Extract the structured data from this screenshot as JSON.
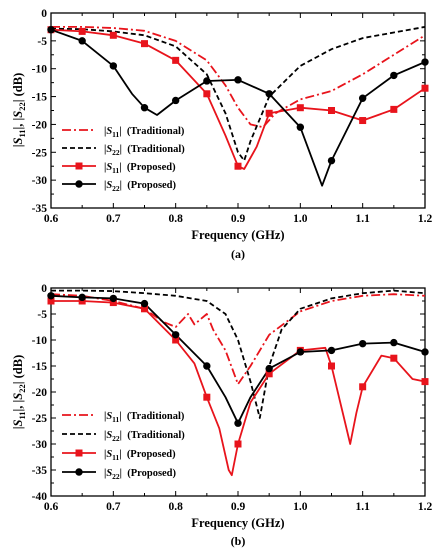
{
  "chart_data": [
    {
      "type": "line",
      "panel_label": "(a)",
      "xlabel": "Frequency (GHz)",
      "ylabel": "|S11|, |S22| (dB)",
      "xlim": [
        0.6,
        1.2
      ],
      "ylim": [
        -35,
        0
      ],
      "xticks": [
        0.6,
        0.7,
        0.8,
        0.9,
        1.0,
        1.1,
        1.2
      ],
      "yticks": [
        0,
        -5,
        -10,
        -15,
        -20,
        -25,
        -30,
        -35
      ],
      "xtick_labels": [
        "0.6",
        "0.7",
        "0.8",
        "0.9",
        "1.0",
        "1.1",
        "1.2"
      ],
      "ytick_labels": [
        "0",
        "-5",
        "-10",
        "-15",
        "-20",
        "-25",
        "-30",
        "-35"
      ],
      "legend_position": "lower-left",
      "series": [
        {
          "name": "|S11| (Traditional)",
          "legend_base": "S",
          "legend_sub": "11",
          "legend_suffix": "(Traditional)",
          "color": "#e8141c",
          "dash": "dashdot",
          "marker": "none",
          "x": [
            0.6,
            0.65,
            0.7,
            0.75,
            0.8,
            0.85,
            0.88,
            0.9,
            0.92,
            0.94,
            0.96,
            1.0,
            1.05,
            1.1,
            1.15,
            1.2
          ],
          "y": [
            -2.5,
            -2.5,
            -2.7,
            -3.2,
            -5.0,
            -8.5,
            -13.0,
            -17.0,
            -20.0,
            -20.5,
            -18.0,
            -15.5,
            -14.0,
            -11.0,
            -7.5,
            -4.0
          ],
          "marker_x": [],
          "marker_y": []
        },
        {
          "name": "|S22| (Traditional)",
          "legend_base": "S",
          "legend_sub": "22",
          "legend_suffix": "(Traditional)",
          "color": "#000000",
          "dash": "dash",
          "marker": "none",
          "x": [
            0.6,
            0.65,
            0.7,
            0.75,
            0.8,
            0.85,
            0.88,
            0.9,
            0.91,
            0.92,
            0.95,
            1.0,
            1.05,
            1.1,
            1.15,
            1.2
          ],
          "y": [
            -2.8,
            -2.9,
            -3.3,
            -4.0,
            -6.0,
            -11.0,
            -18.0,
            -25.0,
            -26.5,
            -23.0,
            -15.0,
            -9.5,
            -6.5,
            -4.5,
            -3.5,
            -2.5
          ],
          "marker_x": [],
          "marker_y": []
        },
        {
          "name": "|S11| (Proposed)",
          "legend_base": "S",
          "legend_sub": "11",
          "legend_suffix": "(Proposed)",
          "color": "#e8141c",
          "dash": "solid",
          "marker": "square",
          "x": [
            0.6,
            0.65,
            0.7,
            0.75,
            0.8,
            0.85,
            0.88,
            0.9,
            0.91,
            0.93,
            0.95,
            1.0,
            1.05,
            1.1,
            1.15,
            1.2
          ],
          "y": [
            -3.0,
            -3.3,
            -4.0,
            -5.5,
            -8.5,
            -14.5,
            -22.0,
            -27.5,
            -28.0,
            -24.0,
            -18.0,
            -17.0,
            -17.5,
            -19.3,
            -17.3,
            -13.5
          ],
          "marker_x": [
            0.6,
            0.65,
            0.7,
            0.75,
            0.8,
            0.85,
            0.9,
            0.95,
            1.0,
            1.05,
            1.1,
            1.15,
            1.2
          ],
          "marker_y": [
            -3.0,
            -3.3,
            -4.0,
            -5.5,
            -8.5,
            -14.5,
            -27.5,
            -18.0,
            -17.0,
            -17.5,
            -19.3,
            -17.3,
            -13.5
          ]
        },
        {
          "name": "|S22| (Proposed)",
          "legend_base": "S",
          "legend_sub": "22",
          "legend_suffix": "(Proposed)",
          "color": "#000000",
          "dash": "solid",
          "marker": "circle",
          "x": [
            0.6,
            0.65,
            0.7,
            0.73,
            0.75,
            0.77,
            0.8,
            0.85,
            0.9,
            0.95,
            1.0,
            1.03,
            1.035,
            1.05,
            1.1,
            1.15,
            1.2
          ],
          "y": [
            -3.0,
            -5.0,
            -9.5,
            -14.5,
            -17.0,
            -18.3,
            -15.7,
            -12.2,
            -12.0,
            -14.5,
            -20.5,
            -29.5,
            -31.0,
            -26.5,
            -15.3,
            -11.2,
            -8.8
          ],
          "marker_x": [
            0.6,
            0.65,
            0.7,
            0.75,
            0.8,
            0.85,
            0.9,
            0.95,
            1.0,
            1.05,
            1.1,
            1.15,
            1.2
          ],
          "marker_y": [
            -3.0,
            -5.0,
            -9.5,
            -17.0,
            -15.7,
            -12.2,
            -12.0,
            -14.5,
            -20.5,
            -26.5,
            -15.3,
            -11.2,
            -8.8
          ]
        }
      ]
    },
    {
      "type": "line",
      "panel_label": "(b)",
      "xlabel": "Frequency (GHz)",
      "ylabel": "|S11|, |S22| (dB)",
      "xlim": [
        0.6,
        1.2
      ],
      "ylim": [
        -40,
        0
      ],
      "xticks": [
        0.6,
        0.7,
        0.8,
        0.9,
        1.0,
        1.1,
        1.2
      ],
      "yticks": [
        0,
        -5,
        -10,
        -15,
        -20,
        -25,
        -30,
        -35,
        -40
      ],
      "xtick_labels": [
        "0.6",
        "0.7",
        "0.8",
        "0.9",
        "1.0",
        "1.1",
        "1.2"
      ],
      "ytick_labels": [
        "0",
        "-5",
        "-10",
        "-15",
        "-20",
        "-25",
        "-30",
        "-35",
        "-40"
      ],
      "legend_position": "lower-left",
      "series": [
        {
          "name": "|S11| (Traditional)",
          "legend_base": "S",
          "legend_sub": "11",
          "legend_suffix": "(Traditional)",
          "color": "#e8141c",
          "dash": "dashdot",
          "marker": "none",
          "x": [
            0.6,
            0.65,
            0.7,
            0.75,
            0.78,
            0.8,
            0.82,
            0.83,
            0.85,
            0.86,
            0.88,
            0.9,
            0.92,
            0.95,
            1.0,
            1.05,
            1.1,
            1.15,
            1.2
          ],
          "y": [
            -1.2,
            -1.5,
            -2.5,
            -4.0,
            -6.5,
            -7.5,
            -5.0,
            -7.0,
            -5.0,
            -8.0,
            -12.0,
            -18.5,
            -15.0,
            -9.0,
            -4.5,
            -2.5,
            -1.5,
            -1.2,
            -1.5
          ],
          "marker_x": [],
          "marker_y": []
        },
        {
          "name": "|S22| (Traditional)",
          "legend_base": "S",
          "legend_sub": "22",
          "legend_suffix": "(Traditional)",
          "color": "#000000",
          "dash": "dash",
          "marker": "none",
          "x": [
            0.6,
            0.65,
            0.7,
            0.75,
            0.8,
            0.85,
            0.88,
            0.9,
            0.92,
            0.935,
            0.95,
            0.97,
            1.0,
            1.05,
            1.1,
            1.15,
            1.2
          ],
          "y": [
            -0.5,
            -0.5,
            -0.6,
            -1.0,
            -1.5,
            -2.5,
            -5.0,
            -10.0,
            -18.0,
            -25.0,
            -15.0,
            -8.0,
            -4.0,
            -2.0,
            -1.0,
            -0.5,
            -1.0
          ],
          "marker_x": [],
          "marker_y": []
        },
        {
          "name": "|S11| (Proposed)",
          "legend_base": "S",
          "legend_sub": "11",
          "legend_suffix": "(Proposed)",
          "color": "#e8141c",
          "dash": "solid",
          "marker": "square",
          "x": [
            0.6,
            0.65,
            0.7,
            0.75,
            0.8,
            0.83,
            0.85,
            0.87,
            0.885,
            0.89,
            0.9,
            0.92,
            0.95,
            1.0,
            1.04,
            1.05,
            1.07,
            1.08,
            1.09,
            1.1,
            1.13,
            1.15,
            1.18,
            1.2
          ],
          "y": [
            -2.5,
            -2.5,
            -2.8,
            -4.0,
            -10.0,
            -14.5,
            -21.0,
            -27.0,
            -35.0,
            -36.0,
            -30.0,
            -22.0,
            -16.5,
            -12.0,
            -11.5,
            -15.0,
            -25.0,
            -30.0,
            -24.0,
            -19.0,
            -13.0,
            -13.5,
            -17.5,
            -18.0
          ],
          "marker_x": [
            0.6,
            0.65,
            0.7,
            0.75,
            0.8,
            0.85,
            0.9,
            0.95,
            1.0,
            1.05,
            1.1,
            1.15,
            1.2
          ],
          "marker_y": [
            -2.5,
            -2.5,
            -2.8,
            -4.0,
            -10.0,
            -21.0,
            -30.0,
            -16.5,
            -12.0,
            -15.0,
            -19.0,
            -13.5,
            -18.0
          ]
        },
        {
          "name": "|S22| (Proposed)",
          "legend_base": "S",
          "legend_sub": "22",
          "legend_suffix": "(Proposed)",
          "color": "#000000",
          "dash": "solid",
          "marker": "circle",
          "x": [
            0.6,
            0.65,
            0.7,
            0.75,
            0.8,
            0.85,
            0.88,
            0.9,
            0.92,
            0.95,
            1.0,
            1.05,
            1.1,
            1.15,
            1.2
          ],
          "y": [
            -1.5,
            -1.8,
            -2.0,
            -3.0,
            -9.0,
            -15.0,
            -21.0,
            -26.0,
            -21.0,
            -15.5,
            -12.3,
            -12.0,
            -10.7,
            -10.5,
            -12.3
          ],
          "marker_x": [
            0.6,
            0.65,
            0.7,
            0.75,
            0.8,
            0.85,
            0.9,
            0.95,
            1.0,
            1.05,
            1.1,
            1.15,
            1.2
          ],
          "marker_y": [
            -1.5,
            -1.8,
            -2.0,
            -3.0,
            -9.0,
            -15.0,
            -26.0,
            -15.5,
            -12.3,
            -12.0,
            -10.7,
            -10.5,
            -12.3
          ]
        }
      ]
    }
  ]
}
